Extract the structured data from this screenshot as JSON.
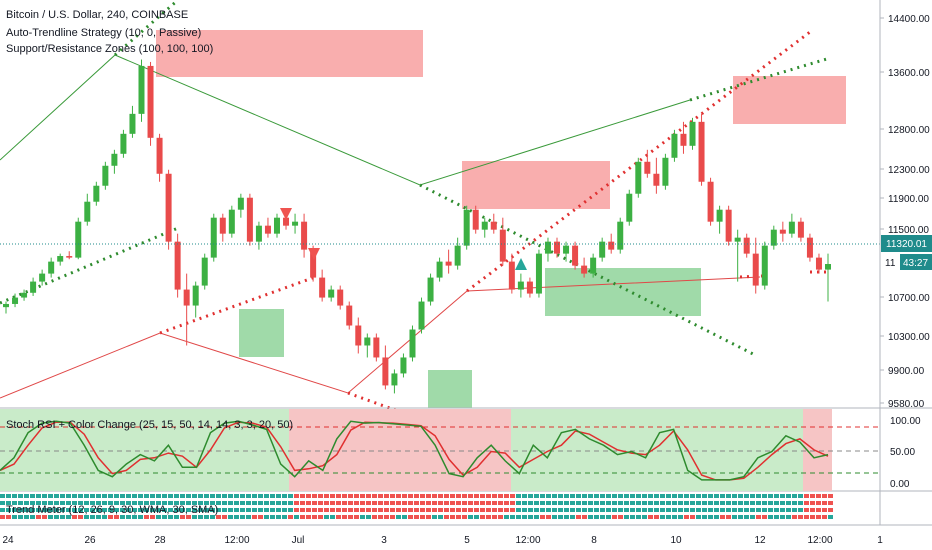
{
  "legend": {
    "main_title": "Bitcoin / U.S. Dollar, 240, COINBASE",
    "indicator1": "Auto-Trendline Strategy (10, 0, Passive)",
    "indicator2": "Support/Resistance Zones (100, 100, 100)",
    "stoch_title": "Stoch RSI + Color Change (25, 15, 50, 14, 14, 3, 3, 20, 50)",
    "trend_title": "Trend Meter (12, 26, 9, 30, WMA, 30, SMA)"
  },
  "price_axis": {
    "ticks": [
      "14400.00",
      "13600.00",
      "12800.00",
      "12300.00",
      "11900.00",
      "11500.00",
      "10700.00",
      "10300.00",
      "9900.00",
      "9580.00"
    ],
    "current_price": "11320.01",
    "countdown": "43:27",
    "partial_label": "11"
  },
  "stoch_axis": {
    "ticks": [
      "100.00",
      "50.00",
      "0.00"
    ]
  },
  "time_axis": {
    "ticks": [
      "24",
      "26",
      "28",
      "12:00",
      "Jul",
      "3",
      "5",
      "12:00",
      "8",
      "10",
      "12",
      "12:00",
      "1"
    ]
  },
  "colors": {
    "up": "#26a69a",
    "down": "#ef5350",
    "candle_up": "#3cb043",
    "candle_down": "#e94b4b",
    "resistance_zone": "#f8a0a0",
    "support_zone": "#8fd49a",
    "trend_green": "#2e8b2e",
    "trend_red": "#e03030",
    "price_label": "#1f8b8b",
    "stoch_k": "#2e8b2e",
    "stoch_d": "#e03030"
  },
  "chart_data": {
    "type": "candlestick",
    "series_ohlc": [
      [
        10780,
        10850,
        10700,
        10820
      ],
      [
        10820,
        10950,
        10780,
        10900
      ],
      [
        10900,
        11000,
        10860,
        10960
      ],
      [
        10960,
        11150,
        10920,
        11100
      ],
      [
        11100,
        11250,
        11050,
        11200
      ],
      [
        11200,
        11400,
        11150,
        11350
      ],
      [
        11350,
        11450,
        11300,
        11420
      ],
      [
        11420,
        11480,
        11380,
        11400
      ],
      [
        11400,
        11900,
        11380,
        11850
      ],
      [
        11850,
        12200,
        11800,
        12100
      ],
      [
        12100,
        12350,
        12050,
        12300
      ],
      [
        12300,
        12600,
        12250,
        12550
      ],
      [
        12550,
        12750,
        12450,
        12700
      ],
      [
        12700,
        13000,
        12650,
        12950
      ],
      [
        12950,
        13300,
        12900,
        13200
      ],
      [
        13200,
        13880,
        13100,
        13800
      ],
      [
        13800,
        13850,
        12800,
        12900
      ],
      [
        12900,
        12950,
        12350,
        12450
      ],
      [
        12450,
        12500,
        11500,
        11600
      ],
      [
        11600,
        11700,
        10900,
        11000
      ],
      [
        11000,
        11200,
        10300,
        10800
      ],
      [
        10800,
        11100,
        10650,
        11050
      ],
      [
        11050,
        11450,
        11000,
        11400
      ],
      [
        11400,
        11950,
        11350,
        11900
      ],
      [
        11900,
        11950,
        11600,
        11700
      ],
      [
        11700,
        12050,
        11650,
        12000
      ],
      [
        12000,
        12200,
        11900,
        12150
      ],
      [
        12150,
        12200,
        11550,
        11600
      ],
      [
        11600,
        11850,
        11500,
        11800
      ],
      [
        11800,
        11900,
        11650,
        11700
      ],
      [
        11700,
        11950,
        11650,
        11900
      ],
      [
        11900,
        11950,
        11750,
        11800
      ],
      [
        11800,
        11950,
        11700,
        11850
      ],
      [
        11850,
        11950,
        11400,
        11500
      ],
      [
        11500,
        11550,
        11100,
        11150
      ],
      [
        11150,
        11250,
        10850,
        10900
      ],
      [
        10900,
        11050,
        10850,
        11000
      ],
      [
        11000,
        11050,
        10750,
        10800
      ],
      [
        10800,
        10850,
        10500,
        10550
      ],
      [
        10550,
        10650,
        10200,
        10300
      ],
      [
        10300,
        10450,
        10150,
        10400
      ],
      [
        10400,
        10450,
        10100,
        10150
      ],
      [
        10150,
        10300,
        9750,
        9800
      ],
      [
        9800,
        10000,
        9700,
        9950
      ],
      [
        9950,
        10200,
        9900,
        10150
      ],
      [
        10150,
        10550,
        10100,
        10500
      ],
      [
        10500,
        10900,
        10450,
        10850
      ],
      [
        10850,
        11200,
        10800,
        11150
      ],
      [
        11150,
        11400,
        11100,
        11350
      ],
      [
        11350,
        11500,
        11200,
        11300
      ],
      [
        11300,
        11650,
        11250,
        11550
      ],
      [
        11550,
        12050,
        11500,
        12000
      ],
      [
        12000,
        12050,
        11700,
        11750
      ],
      [
        11750,
        11900,
        11650,
        11850
      ],
      [
        11850,
        11950,
        11700,
        11750
      ],
      [
        11750,
        11900,
        11300,
        11350
      ],
      [
        11350,
        11450,
        10950,
        11000
      ],
      [
        11000,
        11200,
        10900,
        11100
      ],
      [
        11100,
        11150,
        10900,
        10950
      ],
      [
        10950,
        11500,
        10900,
        11450
      ],
      [
        11450,
        11650,
        11350,
        11600
      ],
      [
        11600,
        11650,
        11400,
        11450
      ],
      [
        11450,
        11600,
        11350,
        11550
      ],
      [
        11550,
        11600,
        11250,
        11300
      ],
      [
        11300,
        11400,
        11150,
        11200
      ],
      [
        11200,
        11450,
        11150,
        11400
      ],
      [
        11400,
        11650,
        11350,
        11600
      ],
      [
        11600,
        11700,
        11450,
        11500
      ],
      [
        11500,
        11900,
        11450,
        11850
      ],
      [
        11850,
        12250,
        11800,
        12200
      ],
      [
        12200,
        12650,
        12150,
        12600
      ],
      [
        12600,
        12750,
        12400,
        12450
      ],
      [
        12450,
        12650,
        12200,
        12300
      ],
      [
        12300,
        12700,
        12250,
        12650
      ],
      [
        12650,
        13000,
        12600,
        12950
      ],
      [
        12950,
        13100,
        12700,
        12800
      ],
      [
        12800,
        13150,
        12750,
        13100
      ],
      [
        13100,
        13200,
        12300,
        12350
      ],
      [
        12350,
        12400,
        11800,
        11850
      ],
      [
        11850,
        12050,
        11700,
        12000
      ],
      [
        12000,
        12050,
        11550,
        11600
      ],
      [
        11600,
        11750,
        11100,
        11650
      ],
      [
        11650,
        11700,
        11400,
        11450
      ],
      [
        11450,
        11650,
        10950,
        11050
      ],
      [
        11050,
        11600,
        11000,
        11550
      ],
      [
        11550,
        11800,
        11500,
        11750
      ],
      [
        11750,
        11850,
        11600,
        11700
      ],
      [
        11700,
        11950,
        11650,
        11850
      ],
      [
        11850,
        11900,
        11600,
        11650
      ],
      [
        11650,
        11700,
        11350,
        11400
      ],
      [
        11400,
        11450,
        11200,
        11250
      ],
      [
        11250,
        11450,
        10850,
        11320
      ]
    ]
  }
}
